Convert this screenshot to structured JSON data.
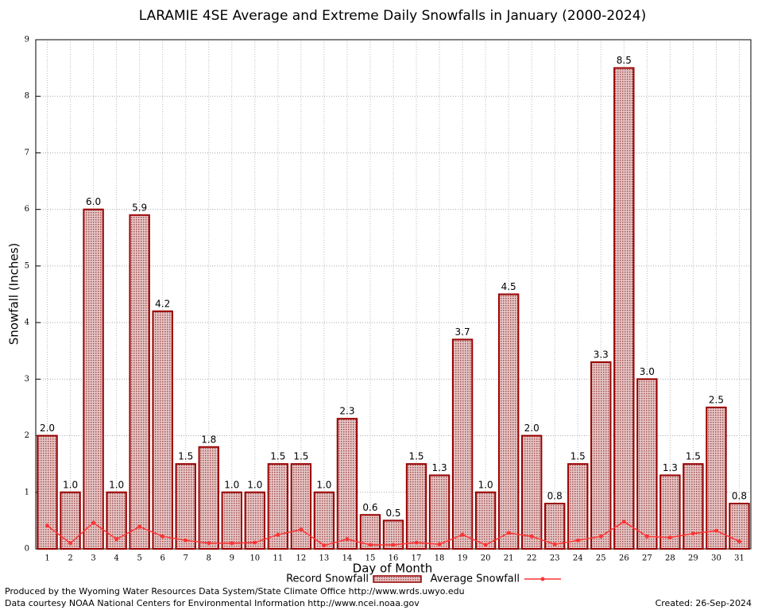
{
  "chart_data": {
    "type": "bar",
    "title": "LARAMIE 4SE Average and Extreme Daily Snowfalls in January (2000-2024)",
    "x_label": "Day of Month",
    "y_label": "Snowfall (Inches)",
    "categories": [
      "1",
      "2",
      "3",
      "4",
      "5",
      "6",
      "7",
      "8",
      "9",
      "10",
      "11",
      "12",
      "13",
      "14",
      "15",
      "16",
      "17",
      "18",
      "19",
      "20",
      "21",
      "22",
      "23",
      "24",
      "25",
      "26",
      "27",
      "28",
      "29",
      "30",
      "31"
    ],
    "series": [
      {
        "name": "Record Snowfall",
        "type": "bar",
        "color": "#990000",
        "values": [
          2.0,
          1.0,
          6.0,
          1.0,
          5.9,
          4.2,
          1.5,
          1.8,
          1.0,
          1.0,
          1.5,
          1.5,
          1.0,
          2.3,
          0.6,
          0.5,
          1.5,
          1.3,
          3.7,
          1.0,
          4.5,
          2.0,
          0.8,
          1.5,
          3.3,
          8.5,
          3.0,
          1.3,
          1.5,
          2.5,
          0.8
        ],
        "value_labels": [
          "2.0",
          "1.0",
          "6.0",
          "1.0",
          "5.9",
          "4.2",
          "1.5",
          "1.8",
          "1.0",
          "1.0",
          "1.5",
          "1.5",
          "1.0",
          "2.3",
          "0.6",
          "0.5",
          "1.5",
          "1.3",
          "3.7",
          "1.0",
          "4.5",
          "2.0",
          "0.8",
          "1.5",
          "3.3",
          "8.5",
          "3.0",
          "1.3",
          "1.5",
          "2.5",
          "0.8"
        ]
      },
      {
        "name": "Average Snowfall",
        "type": "line",
        "color": "#ff3333",
        "values": [
          0.41,
          0.1,
          0.46,
          0.17,
          0.39,
          0.22,
          0.15,
          0.1,
          0.1,
          0.11,
          0.25,
          0.34,
          0.06,
          0.17,
          0.07,
          0.07,
          0.11,
          0.08,
          0.25,
          0.07,
          0.28,
          0.22,
          0.08,
          0.15,
          0.22,
          0.48,
          0.22,
          0.2,
          0.27,
          0.32,
          0.13
        ]
      }
    ],
    "ylim": [
      0,
      9
    ],
    "yticks": [
      0,
      1,
      2,
      3,
      4,
      5,
      6,
      7,
      8,
      9
    ],
    "grid": true,
    "notes": [
      "Produced by the Wyoming Water Resources Data System/State Climate Office http://www.wrds.uwyo.edu",
      "Data courtesy NOAA National Centers for Environmental Information http://www.ncei.noaa.gov",
      "Created:  26-Sep-2024"
    ]
  }
}
